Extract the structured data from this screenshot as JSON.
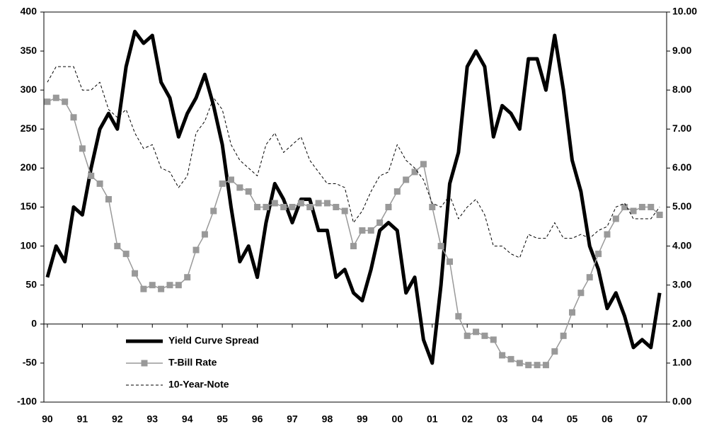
{
  "chart_data": {
    "type": "line",
    "x": [
      1990,
      1990.25,
      1990.5,
      1990.75,
      1991,
      1991.25,
      1991.5,
      1991.75,
      1992,
      1992.25,
      1992.5,
      1992.75,
      1993,
      1993.25,
      1993.5,
      1993.75,
      1994,
      1994.25,
      1994.5,
      1994.75,
      1995,
      1995.25,
      1995.5,
      1995.75,
      1996,
      1996.25,
      1996.5,
      1996.75,
      1997,
      1997.25,
      1997.5,
      1997.75,
      1998,
      1998.25,
      1998.5,
      1998.75,
      1999,
      1999.25,
      1999.5,
      1999.75,
      2000,
      2000.25,
      2000.5,
      2000.75,
      2001,
      2001.25,
      2001.5,
      2001.75,
      2002,
      2002.25,
      2002.5,
      2002.75,
      2003,
      2003.25,
      2003.5,
      2003.75,
      2004,
      2004.25,
      2004.5,
      2004.75,
      2005,
      2005.25,
      2005.5,
      2005.75,
      2006,
      2006.25,
      2006.5,
      2006.75,
      2007,
      2007.25,
      2007.5
    ],
    "xlim": [
      1989.9,
      2007.7
    ],
    "xticks": [
      {
        "value": 1990,
        "label": "90"
      },
      {
        "value": 1991,
        "label": "91"
      },
      {
        "value": 1992,
        "label": "92"
      },
      {
        "value": 1993,
        "label": "93"
      },
      {
        "value": 1994,
        "label": "94"
      },
      {
        "value": 1995,
        "label": "95"
      },
      {
        "value": 1996,
        "label": "96"
      },
      {
        "value": 1997,
        "label": "97"
      },
      {
        "value": 1998,
        "label": "98"
      },
      {
        "value": 1999,
        "label": "99"
      },
      {
        "value": 2000,
        "label": "00"
      },
      {
        "value": 2001,
        "label": "01"
      },
      {
        "value": 2002,
        "label": "02"
      },
      {
        "value": 2003,
        "label": "03"
      },
      {
        "value": 2004,
        "label": "04"
      },
      {
        "value": 2005,
        "label": "05"
      },
      {
        "value": 2006,
        "label": "06"
      },
      {
        "value": 2007,
        "label": "07"
      }
    ],
    "ylim": [
      -100,
      400
    ],
    "yticks": [
      -100,
      -50,
      0,
      50,
      100,
      150,
      200,
      250,
      300,
      350,
      400
    ],
    "y2lim": [
      0,
      10
    ],
    "y2ticks": [
      {
        "value": 0,
        "label": "0.00"
      },
      {
        "value": 1,
        "label": "1.00"
      },
      {
        "value": 2,
        "label": "2.00"
      },
      {
        "value": 3,
        "label": "3.00"
      },
      {
        "value": 4,
        "label": "4.00"
      },
      {
        "value": 5,
        "label": "5.00"
      },
      {
        "value": 6,
        "label": "6.00"
      },
      {
        "value": 7,
        "label": "7.00"
      },
      {
        "value": 8,
        "label": "8.00"
      },
      {
        "value": 9,
        "label": "9.00"
      },
      {
        "value": 10,
        "label": "10.00"
      }
    ],
    "series": [
      {
        "name": "Yield Curve Spread",
        "color": "#000000",
        "line_width": 5,
        "values": [
          60,
          100,
          80,
          150,
          140,
          200,
          250,
          270,
          250,
          330,
          375,
          360,
          370,
          310,
          290,
          240,
          270,
          290,
          320,
          280,
          230,
          150,
          80,
          100,
          60,
          130,
          180,
          160,
          130,
          160,
          160,
          120,
          120,
          60,
          70,
          40,
          30,
          70,
          120,
          130,
          120,
          40,
          60,
          -20,
          -50,
          50,
          180,
          220,
          330,
          350,
          330,
          240,
          280,
          270,
          250,
          340,
          340,
          300,
          370,
          300,
          210,
          170,
          100,
          70,
          20,
          40,
          10,
          -30,
          -20,
          -30,
          40
        ]
      },
      {
        "name": "T-Bill Rate",
        "color": "#999999",
        "axis": "y2",
        "line_width": 1.5,
        "marker": "square",
        "values": [
          7.7,
          7.8,
          7.7,
          7.3,
          6.5,
          5.8,
          5.6,
          5.2,
          4.0,
          3.8,
          3.3,
          2.9,
          3.0,
          2.9,
          3.0,
          3.0,
          3.2,
          3.9,
          4.3,
          4.9,
          5.6,
          5.7,
          5.5,
          5.4,
          5.0,
          5.0,
          5.1,
          5.0,
          5.0,
          5.1,
          5.0,
          5.1,
          5.1,
          5.0,
          4.9,
          4.0,
          4.4,
          4.4,
          4.6,
          5.0,
          5.4,
          5.7,
          5.9,
          6.1,
          5.0,
          4.0,
          3.6,
          2.2,
          1.7,
          1.8,
          1.7,
          1.6,
          1.2,
          1.1,
          1.0,
          0.95,
          0.95,
          0.95,
          1.3,
          1.7,
          2.3,
          2.8,
          3.2,
          3.8,
          4.3,
          4.7,
          5.0,
          4.9,
          5.0,
          5.0,
          4.8
        ]
      },
      {
        "name": "10-Year-Note",
        "color": "#000000",
        "axis": "y2",
        "line_width": 1,
        "dash": true,
        "values": [
          8.2,
          8.6,
          8.6,
          8.6,
          8.0,
          8.0,
          8.2,
          7.5,
          7.3,
          7.5,
          6.9,
          6.5,
          6.6,
          6.0,
          5.9,
          5.5,
          5.8,
          6.9,
          7.2,
          7.8,
          7.5,
          6.6,
          6.2,
          6.0,
          5.8,
          6.6,
          6.9,
          6.4,
          6.6,
          6.8,
          6.2,
          5.9,
          5.6,
          5.6,
          5.5,
          4.6,
          4.9,
          5.4,
          5.8,
          5.9,
          6.6,
          6.2,
          6.0,
          5.7,
          5.1,
          5.0,
          5.3,
          4.7,
          5.0,
          5.2,
          4.8,
          4.0,
          4.0,
          3.8,
          3.7,
          4.3,
          4.2,
          4.2,
          4.6,
          4.2,
          4.2,
          4.3,
          4.2,
          4.4,
          4.5,
          5.0,
          5.1,
          4.7,
          4.7,
          4.7,
          5.0
        ]
      }
    ]
  }
}
